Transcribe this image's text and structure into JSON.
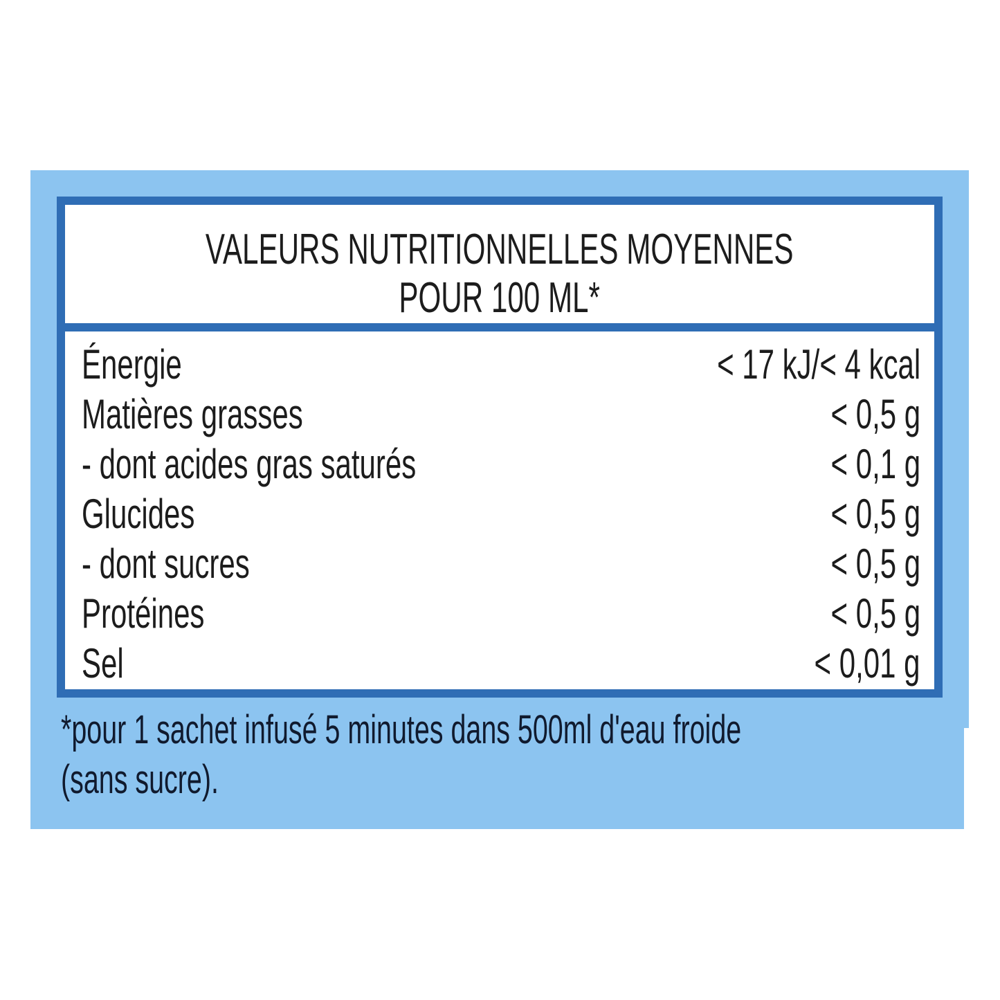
{
  "colors": {
    "panel_bg": "#8cc4f0",
    "frame": "#2f6db5",
    "text": "#1c1c1c"
  },
  "header": {
    "line1": "VALEURS NUTRITIONNELLES MOYENNES",
    "line2": "POUR 100 ML*"
  },
  "rows": [
    {
      "label": "Énergie",
      "value": "< 17 kJ/< 4 kcal"
    },
    {
      "label": "Matières grasses",
      "value": "< 0,5 g"
    },
    {
      "label": "- dont acides gras saturés",
      "value": "< 0,1 g"
    },
    {
      "label": "Glucides",
      "value": "< 0,5 g"
    },
    {
      "label": "- dont sucres",
      "value": "< 0,5 g"
    },
    {
      "label": "Protéines",
      "value": "< 0,5 g"
    },
    {
      "label": "Sel",
      "value": "< 0,01 g"
    }
  ],
  "footnote": {
    "line1": "*pour 1 sachet infusé 5 minutes dans 500ml d'eau froide",
    "line2": "(sans sucre)."
  }
}
